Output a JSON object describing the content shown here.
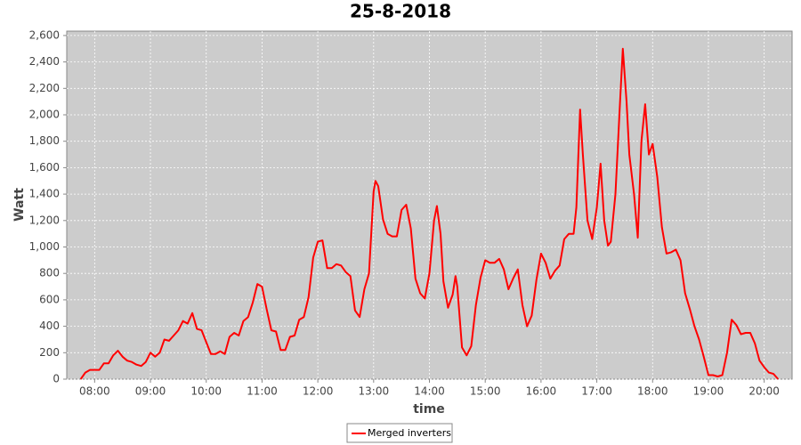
{
  "chart_data": {
    "type": "line",
    "title": "25-8-2018",
    "x_label": "time",
    "y_label": "Watt",
    "x": [
      "07:45",
      "07:50",
      "07:55",
      "08:00",
      "08:05",
      "08:10",
      "08:15",
      "08:20",
      "08:25",
      "08:30",
      "08:35",
      "08:40",
      "08:45",
      "08:50",
      "08:55",
      "09:00",
      "09:05",
      "09:10",
      "09:15",
      "09:20",
      "09:25",
      "09:30",
      "09:35",
      "09:40",
      "09:45",
      "09:50",
      "09:55",
      "10:00",
      "10:05",
      "10:10",
      "10:15",
      "10:20",
      "10:25",
      "10:30",
      "10:35",
      "10:40",
      "10:45",
      "10:50",
      "10:55",
      "11:00",
      "11:05",
      "11:10",
      "11:15",
      "11:20",
      "11:25",
      "11:30",
      "11:35",
      "11:40",
      "11:45",
      "11:50",
      "11:55",
      "12:00",
      "12:05",
      "12:10",
      "12:15",
      "12:20",
      "12:25",
      "12:30",
      "12:35",
      "12:40",
      "12:45",
      "12:50",
      "12:55",
      "13:00",
      "13:02",
      "13:05",
      "13:10",
      "13:15",
      "13:20",
      "13:25",
      "13:30",
      "13:35",
      "13:40",
      "13:45",
      "13:50",
      "13:55",
      "14:00",
      "14:05",
      "14:08",
      "14:12",
      "14:15",
      "14:20",
      "14:25",
      "14:28",
      "14:30",
      "14:35",
      "14:40",
      "14:45",
      "14:50",
      "14:55",
      "15:00",
      "15:05",
      "15:10",
      "15:15",
      "15:20",
      "15:25",
      "15:30",
      "15:35",
      "15:40",
      "15:45",
      "15:50",
      "15:55",
      "16:00",
      "16:05",
      "16:10",
      "16:15",
      "16:20",
      "16:25",
      "16:30",
      "16:35",
      "16:38",
      "16:42",
      "16:45",
      "16:50",
      "16:55",
      "17:00",
      "17:04",
      "17:08",
      "17:12",
      "17:15",
      "17:20",
      "17:25",
      "17:28",
      "17:32",
      "17:35",
      "17:40",
      "17:44",
      "17:48",
      "17:52",
      "17:56",
      "18:00",
      "18:05",
      "18:10",
      "18:15",
      "18:20",
      "18:25",
      "18:30",
      "18:35",
      "18:40",
      "18:45",
      "18:50",
      "18:55",
      "19:00",
      "19:05",
      "19:10",
      "19:15",
      "19:20",
      "19:25",
      "19:30",
      "19:35",
      "19:40",
      "19:45",
      "19:50",
      "19:55",
      "20:00",
      "20:05",
      "20:10",
      "20:15"
    ],
    "series": [
      {
        "name": "Merged inverters",
        "color": "#ff0000",
        "values": [
          0,
          50,
          70,
          70,
          70,
          120,
          120,
          180,
          215,
          170,
          140,
          130,
          110,
          100,
          130,
          200,
          170,
          200,
          300,
          290,
          330,
          370,
          440,
          420,
          500,
          380,
          370,
          280,
          190,
          190,
          210,
          190,
          320,
          350,
          330,
          440,
          470,
          580,
          720,
          700,
          530,
          370,
          360,
          220,
          220,
          320,
          330,
          450,
          470,
          620,
          920,
          1040,
          1050,
          840,
          840,
          870,
          860,
          810,
          780,
          520,
          470,
          680,
          800,
          1420,
          1500,
          1460,
          1210,
          1100,
          1080,
          1080,
          1280,
          1320,
          1140,
          760,
          650,
          610,
          800,
          1200,
          1310,
          1100,
          740,
          540,
          640,
          780,
          700,
          240,
          180,
          250,
          560,
          770,
          900,
          880,
          880,
          910,
          830,
          680,
          760,
          830,
          560,
          400,
          480,
          750,
          950,
          880,
          760,
          820,
          860,
          1060,
          1100,
          1100,
          1300,
          2040,
          1700,
          1200,
          1060,
          1300,
          1630,
          1200,
          1010,
          1040,
          1400,
          2100,
          2500,
          2100,
          1700,
          1400,
          1070,
          1800,
          2080,
          1700,
          1780,
          1530,
          1150,
          950,
          960,
          980,
          900,
          650,
          530,
          400,
          300,
          170,
          30,
          30,
          20,
          30,
          200,
          450,
          410,
          340,
          350,
          350,
          270,
          140,
          90,
          50,
          40,
          0
        ]
      }
    ],
    "xlim": [
      "07:30",
      "20:30"
    ],
    "xticks": [
      "08:00",
      "09:00",
      "10:00",
      "11:00",
      "12:00",
      "13:00",
      "14:00",
      "15:00",
      "16:00",
      "17:00",
      "18:00",
      "19:00",
      "20:00"
    ],
    "ylim": [
      0,
      2633
    ],
    "yticks": [
      0,
      200,
      400,
      600,
      800,
      {
        "value": 1000,
        "label": "1,000"
      },
      {
        "value": 1200,
        "label": "1,200"
      },
      {
        "value": 1400,
        "label": "1,400"
      },
      {
        "value": 1600,
        "label": "1,600"
      },
      {
        "value": 1800,
        "label": "1,800"
      },
      {
        "value": 2000,
        "label": "2,000"
      },
      {
        "value": 2200,
        "label": "2,200"
      },
      {
        "value": 2400,
        "label": "2,400"
      },
      {
        "value": 2600,
        "label": "2,600"
      }
    ],
    "grid": true
  }
}
